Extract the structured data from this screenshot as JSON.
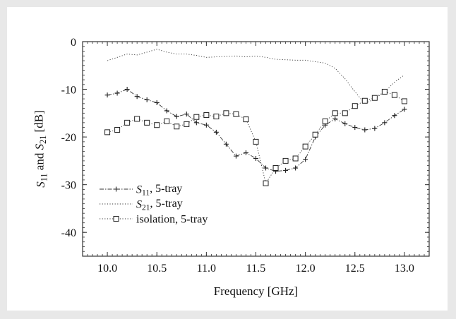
{
  "chart_data": {
    "type": "line",
    "title": "",
    "xlabel": "Frequency [GHz]",
    "ylabel": {
      "parts": [
        {
          "text": "S",
          "italic": true
        },
        {
          "text": "11",
          "sub": true
        },
        {
          "text": " and "
        },
        {
          "text": "S",
          "italic": true
        },
        {
          "text": "21",
          "sub": true
        },
        {
          "text": " [dB]"
        }
      ]
    },
    "xlim": [
      9.75,
      13.25
    ],
    "ylim": [
      -45,
      0
    ],
    "xticks": [
      10.0,
      10.5,
      11.0,
      11.5,
      12.0,
      12.5,
      13.0
    ],
    "xtick_labels": [
      "10.0",
      "10.5",
      "11.0",
      "11.5",
      "12.0",
      "12.5",
      "13.0"
    ],
    "yticks": [
      0,
      -10,
      -20,
      -30,
      -40
    ],
    "ytick_labels": [
      "0",
      "-10",
      "-20",
      "-30",
      "-40"
    ],
    "grid": false,
    "legend_position": "lower-left",
    "series": [
      {
        "name": "S11, 5-tray",
        "label_parts": [
          {
            "text": "S",
            "italic": true
          },
          {
            "text": "11",
            "sub": true
          },
          {
            "text": ", 5-tray"
          }
        ],
        "marker": "plus",
        "dash": "dashdot",
        "x": [
          10.0,
          10.1,
          10.2,
          10.3,
          10.4,
          10.5,
          10.6,
          10.7,
          10.8,
          10.9,
          11.0,
          11.1,
          11.2,
          11.3,
          11.4,
          11.5,
          11.6,
          11.7,
          11.8,
          11.9,
          12.0,
          12.1,
          12.2,
          12.3,
          12.4,
          12.5,
          12.6,
          12.7,
          12.8,
          12.9,
          13.0
        ],
        "values": [
          -11.2,
          -10.8,
          -10.0,
          -11.5,
          -12.2,
          -12.8,
          -14.5,
          -15.7,
          -15.2,
          -17.0,
          -17.5,
          -19.0,
          -21.5,
          -24.0,
          -23.3,
          -24.5,
          -26.5,
          -27.2,
          -27.0,
          -26.5,
          -24.7,
          -20.0,
          -17.5,
          -16.2,
          -17.2,
          -18.0,
          -18.5,
          -18.2,
          -17.0,
          -15.5,
          -14.2
        ]
      },
      {
        "name": "S21, 5-tray",
        "label_parts": [
          {
            "text": "S",
            "italic": true
          },
          {
            "text": "21",
            "sub": true
          },
          {
            "text": ", 5-tray"
          }
        ],
        "marker": "none",
        "dash": "dotted",
        "x": [
          10.0,
          10.1,
          10.2,
          10.3,
          10.4,
          10.5,
          10.6,
          10.7,
          10.8,
          10.9,
          11.0,
          11.1,
          11.2,
          11.3,
          11.4,
          11.5,
          11.6,
          11.7,
          11.8,
          11.9,
          12.0,
          12.1,
          12.2,
          12.3,
          12.4,
          12.5,
          12.6,
          12.7,
          12.8,
          12.9,
          13.0
        ],
        "values": [
          -4.0,
          -3.3,
          -2.6,
          -2.8,
          -2.2,
          -1.6,
          -2.2,
          -2.6,
          -2.6,
          -2.9,
          -3.3,
          -3.2,
          -3.1,
          -3.0,
          -3.2,
          -3.0,
          -3.3,
          -3.7,
          -3.8,
          -3.9,
          -3.9,
          -4.2,
          -4.5,
          -5.6,
          -7.8,
          -10.5,
          -13.0,
          -12.0,
          -10.5,
          -8.5,
          -7.0
        ]
      },
      {
        "name": "isolation, 5-tray",
        "label_parts": [
          {
            "text": "isolation, 5-tray"
          }
        ],
        "marker": "square",
        "dash": "dotted",
        "x": [
          10.0,
          10.1,
          10.2,
          10.3,
          10.4,
          10.5,
          10.6,
          10.7,
          10.8,
          10.9,
          11.0,
          11.1,
          11.2,
          11.3,
          11.4,
          11.5,
          11.6,
          11.7,
          11.8,
          11.9,
          12.0,
          12.1,
          12.2,
          12.3,
          12.4,
          12.5,
          12.6,
          12.7,
          12.8,
          12.9,
          13.0
        ],
        "values": [
          -19.0,
          -18.5,
          -17.0,
          -16.2,
          -17.0,
          -17.5,
          -16.7,
          -17.8,
          -17.3,
          -15.8,
          -15.4,
          -15.7,
          -15.0,
          -15.2,
          -16.3,
          -21.0,
          -29.7,
          -26.5,
          -25.0,
          -24.5,
          -22.0,
          -19.5,
          -16.7,
          -15.0,
          -15.0,
          -13.5,
          -12.4,
          -11.8,
          -10.5,
          -11.2,
          -12.5
        ]
      }
    ]
  }
}
